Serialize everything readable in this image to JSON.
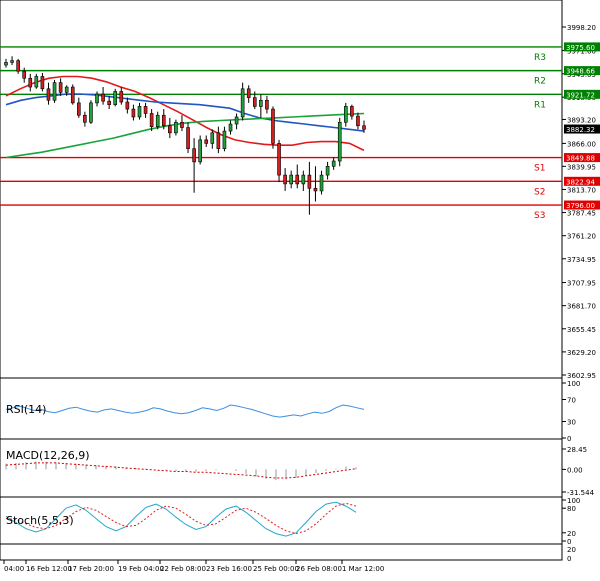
{
  "chart_data": {
    "type": "candlestick",
    "price_axis": {
      "ticks": [
        "3998.20",
        "3971.60",
        "3945.05",
        "3918.50",
        "3893.20",
        "3866.00",
        "3839.95",
        "3813.70",
        "3787.45",
        "3761.20",
        "3734.95",
        "3707.95",
        "3681.70",
        "3655.45",
        "3629.20",
        "3602.95"
      ],
      "ylim": [
        3602.95,
        3998.2
      ]
    },
    "x_axis": {
      "labels": [
        "04:00",
        "16 Feb 12:00",
        "17 Feb 20:00",
        "19 Feb 04:00",
        "22 Feb 08:00",
        "23 Feb 16:00",
        "25 Feb 00:00",
        "26 Feb 08:00",
        "1 Mar 12:00"
      ]
    },
    "current_price": "3882.32",
    "levels": [
      {
        "name": "R3",
        "value": 3975.6,
        "label": "3975.60",
        "color": "#008000"
      },
      {
        "name": "R2",
        "value": 3948.66,
        "label": "3948.66",
        "color": "#008000"
      },
      {
        "name": "R1",
        "value": 3921.72,
        "label": "3921.72",
        "color": "#008000"
      },
      {
        "name": "S1",
        "value": 3849.88,
        "label": "3849.88",
        "color": "#e00000"
      },
      {
        "name": "S2",
        "value": 3822.94,
        "label": "3822.94",
        "color": "#e00000"
      },
      {
        "name": "S3",
        "value": 3796.0,
        "label": "3796.00",
        "color": "#e00000"
      }
    ],
    "candles": [
      [
        3955,
        3962,
        3952,
        3958
      ],
      [
        3958,
        3965,
        3955,
        3960
      ],
      [
        3960,
        3962,
        3945,
        3948
      ],
      [
        3948,
        3952,
        3935,
        3940
      ],
      [
        3940,
        3945,
        3925,
        3930
      ],
      [
        3930,
        3945,
        3928,
        3942
      ],
      [
        3942,
        3946,
        3925,
        3928
      ],
      [
        3928,
        3935,
        3910,
        3915
      ],
      [
        3915,
        3938,
        3912,
        3935
      ],
      [
        3935,
        3940,
        3920,
        3924
      ],
      [
        3924,
        3932,
        3920,
        3930
      ],
      [
        3930,
        3933,
        3910,
        3912
      ],
      [
        3912,
        3918,
        3895,
        3898
      ],
      [
        3898,
        3902,
        3885,
        3890
      ],
      [
        3890,
        3915,
        3888,
        3912
      ],
      [
        3912,
        3925,
        3908,
        3922
      ],
      [
        3922,
        3930,
        3910,
        3914
      ],
      [
        3914,
        3920,
        3905,
        3910
      ],
      [
        3910,
        3928,
        3908,
        3925
      ],
      [
        3925,
        3930,
        3910,
        3913
      ],
      [
        3913,
        3918,
        3900,
        3905
      ],
      [
        3905,
        3910,
        3892,
        3896
      ],
      [
        3896,
        3912,
        3893,
        3908
      ],
      [
        3908,
        3912,
        3895,
        3900
      ],
      [
        3900,
        3905,
        3880,
        3885
      ],
      [
        3885,
        3902,
        3882,
        3898
      ],
      [
        3898,
        3905,
        3882,
        3886
      ],
      [
        3886,
        3895,
        3872,
        3878
      ],
      [
        3878,
        3893,
        3875,
        3890
      ],
      [
        3890,
        3898,
        3880,
        3884
      ],
      [
        3884,
        3890,
        3855,
        3860
      ],
      [
        3860,
        3872,
        3810,
        3845
      ],
      [
        3845,
        3875,
        3842,
        3870
      ],
      [
        3870,
        3875,
        3862,
        3866
      ],
      [
        3866,
        3882,
        3860,
        3878
      ],
      [
        3878,
        3885,
        3855,
        3860
      ],
      [
        3860,
        3885,
        3857,
        3880
      ],
      [
        3880,
        3892,
        3876,
        3888
      ],
      [
        3888,
        3900,
        3882,
        3896
      ],
      [
        3896,
        3935,
        3892,
        3928
      ],
      [
        3928,
        3932,
        3912,
        3918
      ],
      [
        3918,
        3925,
        3905,
        3908
      ],
      [
        3908,
        3922,
        3895,
        3915
      ],
      [
        3915,
        3920,
        3900,
        3905
      ],
      [
        3905,
        3908,
        3860,
        3866
      ],
      [
        3866,
        3870,
        3822,
        3830
      ],
      [
        3830,
        3838,
        3812,
        3820
      ],
      [
        3820,
        3835,
        3815,
        3830
      ],
      [
        3830,
        3842,
        3815,
        3820
      ],
      [
        3820,
        3835,
        3812,
        3830
      ],
      [
        3830,
        3845,
        3785,
        3815
      ],
      [
        3815,
        3840,
        3800,
        3812
      ],
      [
        3812,
        3835,
        3808,
        3830
      ],
      [
        3830,
        3845,
        3825,
        3840
      ],
      [
        3840,
        3850,
        3836,
        3846
      ],
      [
        3846,
        3895,
        3840,
        3890
      ],
      [
        3890,
        3912,
        3885,
        3908
      ],
      [
        3908,
        3910,
        3893,
        3897
      ],
      [
        3897,
        3901,
        3882,
        3886
      ],
      [
        3886,
        3892,
        3878,
        3882
      ]
    ],
    "moving_averages": [
      {
        "color": "#e31a1c",
        "values": [
          3920,
          3928,
          3935,
          3940,
          3942,
          3942,
          3940,
          3936,
          3930,
          3925,
          3918,
          3910,
          3902,
          3893,
          3884,
          3876,
          3870,
          3867,
          3865,
          3864,
          3864,
          3867,
          3868,
          3868,
          3866,
          3858
        ]
      },
      {
        "color": "#2155c4",
        "values": [
          3910,
          3915,
          3918,
          3920,
          3922,
          3922,
          3921,
          3919,
          3917,
          3915,
          3913,
          3912,
          3911,
          3910,
          3908,
          3906,
          3900,
          3895,
          3892,
          3890,
          3888,
          3886,
          3884,
          3882,
          3880
        ]
      },
      {
        "color": "#1aa33a",
        "values": [
          3850,
          3853,
          3856,
          3860,
          3864,
          3868,
          3872,
          3877,
          3882,
          3886,
          3889,
          3891,
          3892,
          3893,
          3894,
          3895,
          3896,
          3897,
          3898,
          3899,
          3900
        ]
      }
    ],
    "indicators": [
      {
        "name": "RSI(14)",
        "ticks": [
          "100",
          "70",
          "30",
          "0"
        ],
        "color": "#3c8fe0",
        "values": [
          52,
          55,
          58,
          54,
          50,
          52,
          48,
          46,
          50,
          54,
          56,
          52,
          49,
          47,
          51,
          53,
          50,
          47,
          45,
          47,
          50,
          55,
          53,
          49,
          46,
          44,
          46,
          50,
          55,
          53,
          50,
          54,
          60,
          58,
          55,
          52,
          48,
          44,
          40,
          38,
          40,
          42,
          40,
          44,
          47,
          45,
          48,
          55,
          60,
          58,
          55,
          52
        ]
      },
      {
        "name": "MACD(12,26,9)",
        "ticks": [
          "28.45",
          "0.00",
          "-31.544"
        ],
        "color": "#d40000"
      },
      {
        "name": "Stoch(5,5,3)",
        "ticks": [
          "100",
          "80",
          "20",
          "0"
        ],
        "color": "#24a8c9",
        "signal_color": "#e02020"
      },
      {
        "name": "",
        "ticks": [
          "20",
          "0"
        ]
      }
    ]
  }
}
